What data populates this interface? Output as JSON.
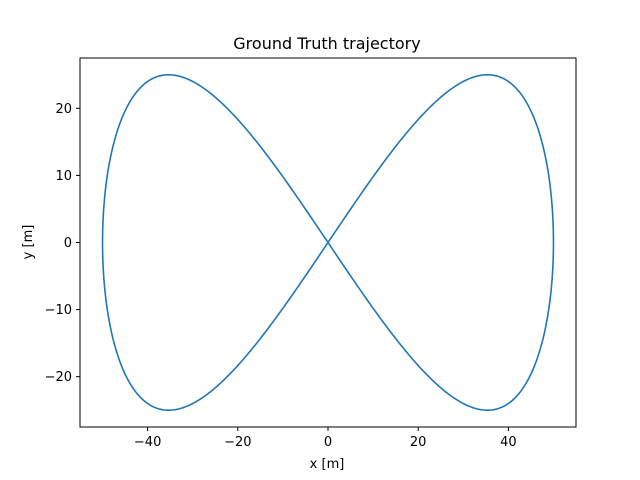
{
  "chart_data": {
    "type": "line",
    "title": "Ground Truth trajectory",
    "xlabel": "x [m]",
    "ylabel": "y [m]",
    "xlim": [
      -55,
      55
    ],
    "ylim": [
      -27.5,
      27.5
    ],
    "xticks": [
      -40,
      -20,
      0,
      20,
      40
    ],
    "yticks": [
      -20,
      -10,
      0,
      10,
      20
    ],
    "grid": false,
    "legend": "none",
    "series": [
      {
        "color": "#1f77b4",
        "curve": "lemniscate of Gerono",
        "x_amplitude": 50,
        "y_amplitude": 25,
        "x_extent": [
          -50,
          50
        ],
        "y_extent": [
          -25,
          25
        ],
        "start_point": [
          50,
          0
        ],
        "self_intersection": [
          0,
          0
        ]
      }
    ]
  }
}
